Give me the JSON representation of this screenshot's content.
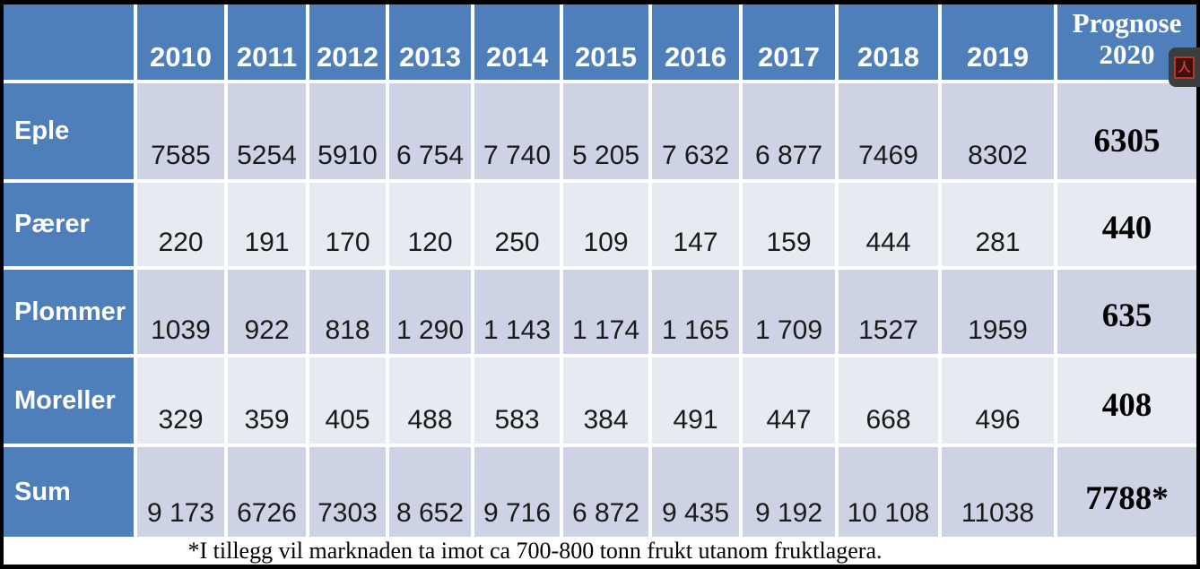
{
  "table": {
    "columns": [
      "2010",
      "2011",
      "2012",
      "2013",
      "2014",
      "2015",
      "2016",
      "2017",
      "2018",
      "2019"
    ],
    "prognose_header": {
      "line1": "Prognose",
      "line2": "2020"
    },
    "rows": [
      {
        "label": "Eple",
        "values": [
          "7585",
          "5254",
          "5910",
          "6 754",
          "7 740",
          "5 205",
          "7 632",
          "6 877",
          "7469",
          "8302"
        ],
        "prognose": "6305"
      },
      {
        "label": "Pærer",
        "values": [
          "220",
          "191",
          "170",
          "120",
          "250",
          "109",
          "147",
          "159",
          "444",
          "281"
        ],
        "prognose": "440"
      },
      {
        "label": "Plommer",
        "values": [
          "1039",
          "922",
          "818",
          "1 290",
          "1 143",
          "1 174",
          "1 165",
          "1 709",
          "1527",
          "1959"
        ],
        "prognose": "635"
      },
      {
        "label": "Moreller",
        "values": [
          "329",
          "359",
          "405",
          "488",
          "583",
          "384",
          "491",
          "447",
          "668",
          "496"
        ],
        "prognose": "408"
      },
      {
        "label": "Sum",
        "values": [
          "9 173",
          "6726",
          "7303",
          "8 652",
          "9 716",
          "6 872",
          "9 435",
          "9 192",
          "10 108",
          "11038"
        ],
        "prognose": "7788*"
      }
    ],
    "footnote": "*I tillegg vil marknaden ta imot ca 700-800 tonn frukt utanom fruktlagera."
  },
  "overlay": {
    "pdf_icon_glyph": "人"
  },
  "colors": {
    "header_blue": "#4e7fba",
    "band_dark": "#cdd3e4",
    "band_light": "#e8eaf2",
    "frame_black": "#000000",
    "pdf_red": "#bd3326"
  },
  "chart_data": {
    "type": "table",
    "title": "Fruktlagera: tonn frukt per år",
    "categories": [
      "2010",
      "2011",
      "2012",
      "2013",
      "2014",
      "2015",
      "2016",
      "2017",
      "2018",
      "2019",
      "Prognose 2020"
    ],
    "series": [
      {
        "name": "Eple",
        "values": [
          7585,
          5254,
          5910,
          6754,
          7740,
          5205,
          7632,
          6877,
          7469,
          8302,
          6305
        ]
      },
      {
        "name": "Pærer",
        "values": [
          220,
          191,
          170,
          120,
          250,
          109,
          147,
          159,
          444,
          281,
          440
        ]
      },
      {
        "name": "Plommer",
        "values": [
          1039,
          922,
          818,
          1290,
          1143,
          1174,
          1165,
          1709,
          1527,
          1959,
          635
        ]
      },
      {
        "name": "Moreller",
        "values": [
          329,
          359,
          405,
          488,
          583,
          384,
          491,
          447,
          668,
          496,
          408
        ]
      },
      {
        "name": "Sum",
        "values": [
          9173,
          6726,
          7303,
          8652,
          9716,
          6872,
          9435,
          9192,
          10108,
          11038,
          7788
        ]
      }
    ]
  }
}
